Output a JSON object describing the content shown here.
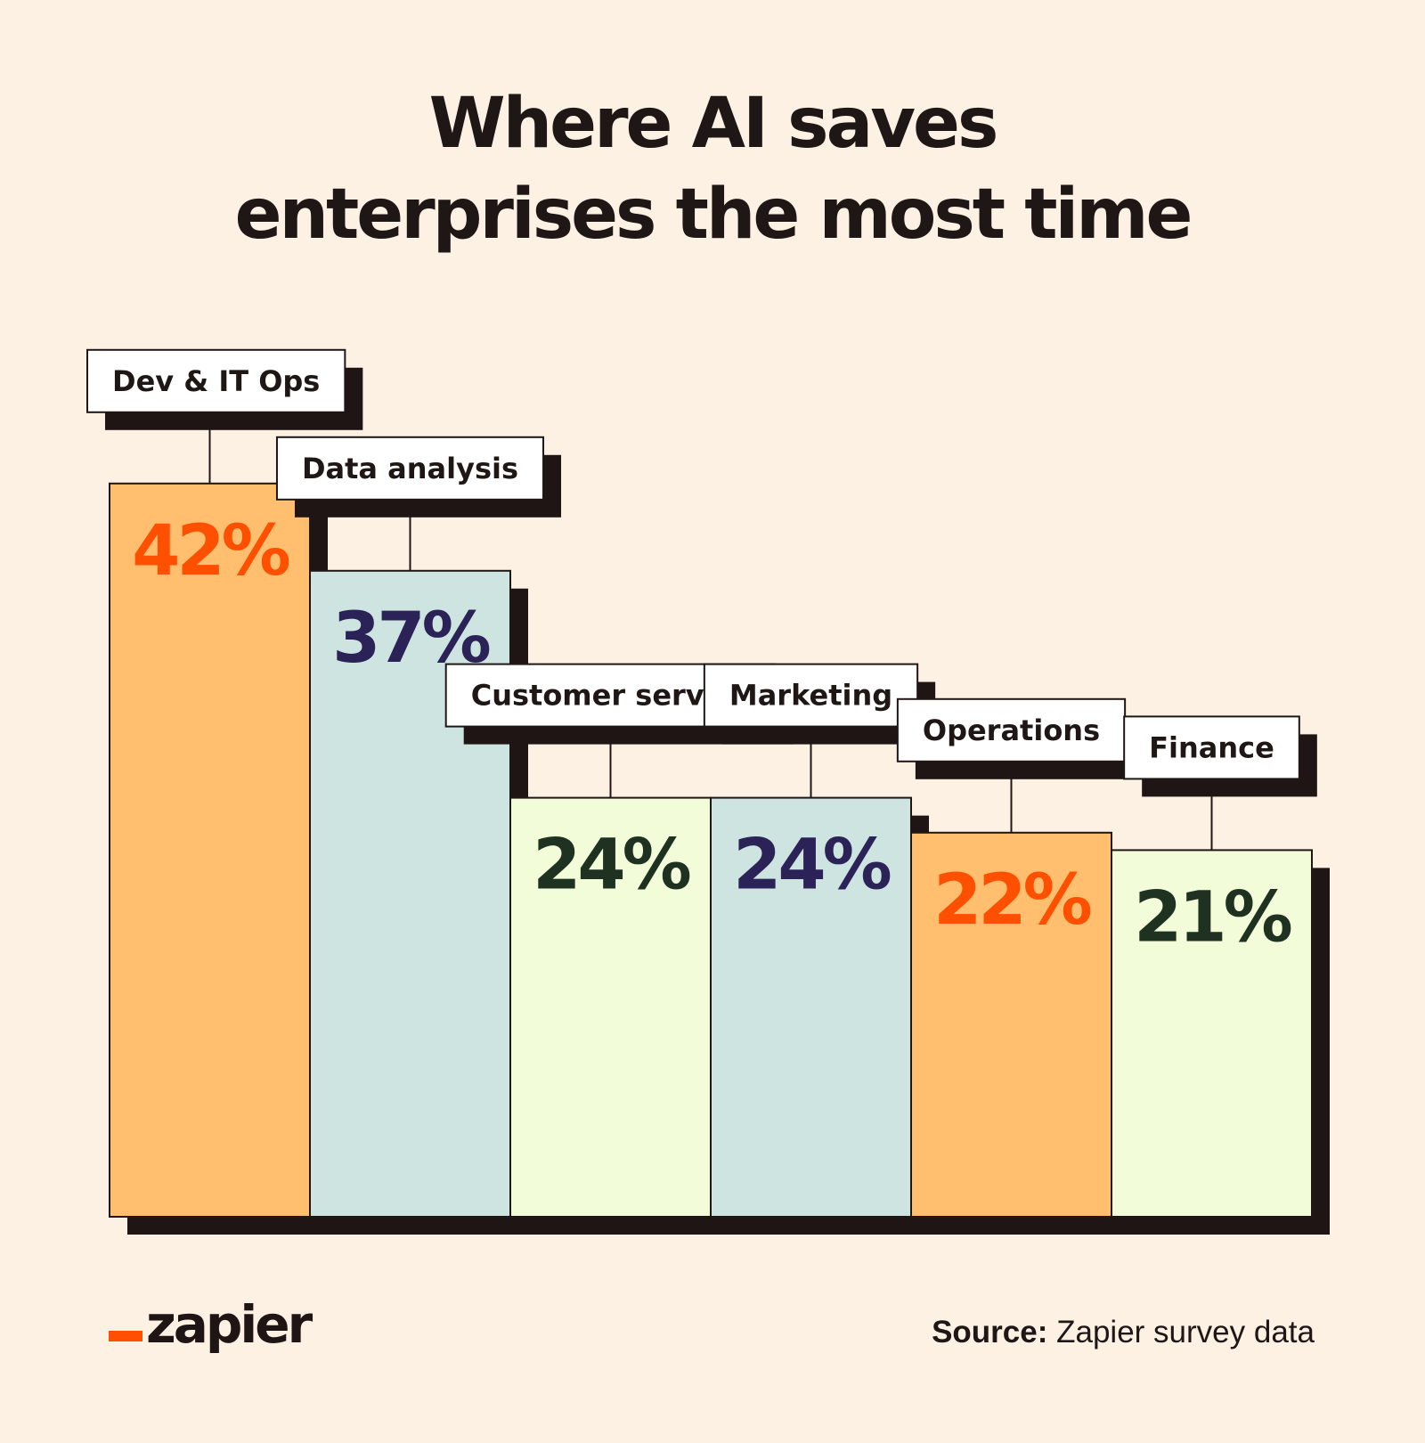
{
  "title_lines": [
    "Where AI saves",
    "enterprises the most time"
  ],
  "footer": {
    "logo": "zapier",
    "source_label": "Source:",
    "source_text": "Zapier survey data"
  },
  "colors": {
    "background": "#fdf1e4",
    "orange_fill": "#ffbf6e",
    "orange_text": "#ff4f00",
    "blue_fill": "#cde4e1",
    "navy_text": "#2b2358",
    "green_fill": "#f3fcd8",
    "green_text": "#1f3121",
    "shadow": "#201515"
  },
  "chart_data": {
    "type": "bar",
    "title": "Where AI saves enterprises the most time",
    "categories": [
      "Dev & IT Ops",
      "Data analysis",
      "Customer service",
      "Marketing",
      "Operations",
      "Finance"
    ],
    "values": [
      42,
      37,
      24,
      24,
      22,
      21
    ],
    "value_labels": [
      "42%",
      "37%",
      "24%",
      "24%",
      "22%",
      "21%"
    ],
    "unit": "%",
    "bar_fills": [
      "#ffbf6e",
      "#cde4e1",
      "#f3fcd8",
      "#cde4e1",
      "#ffbf6e",
      "#f3fcd8"
    ],
    "label_colors": [
      "#ff4f00",
      "#2b2358",
      "#1f3121",
      "#2b2358",
      "#ff4f00",
      "#1f3121"
    ],
    "grid": false,
    "legend": "none"
  }
}
